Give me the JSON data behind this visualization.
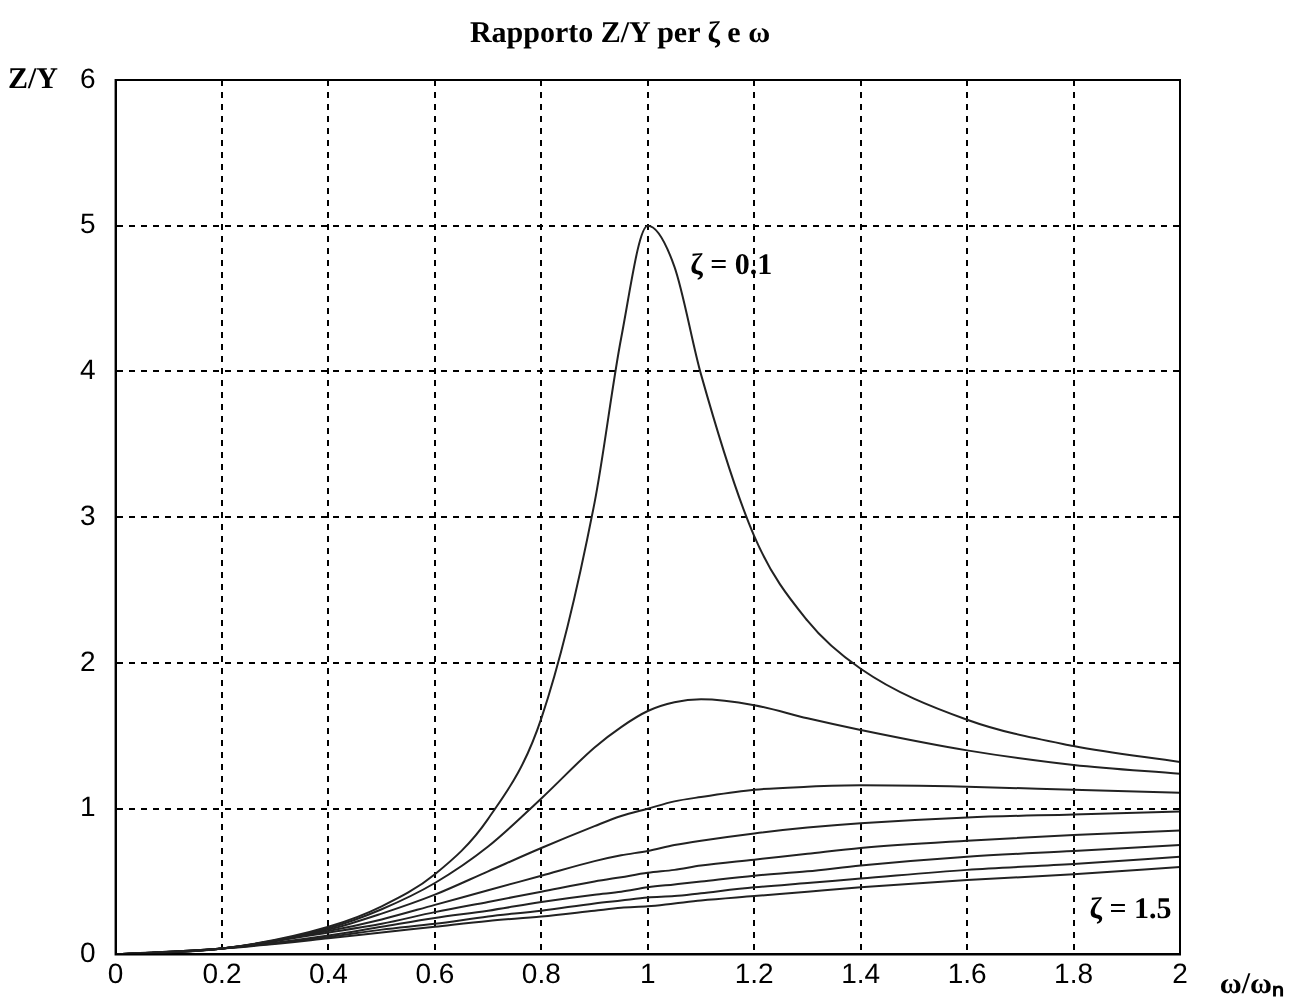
{
  "chart_data": {
    "type": "line",
    "title": "Rapporto Z/Y per ζ e ω",
    "xlabel": "ω/ωₙ",
    "ylabel": "Z/Y",
    "x": [
      0,
      0.2,
      0.4,
      0.5,
      0.6,
      0.7,
      0.8,
      0.9,
      0.95,
      1,
      1.05,
      1.1,
      1.2,
      1.3,
      1.4,
      1.6,
      1.8,
      2
    ],
    "series": [
      {
        "color": "#222222",
        "values": [
          0,
          0.04,
          0.19,
          0.33,
          0.55,
          0.93,
          1.62,
          3.1,
          4.23,
          5.0,
          4.72,
          3.98,
          2.87,
          2.29,
          1.96,
          1.61,
          1.43,
          1.32
        ]
      },
      {
        "color": "#222222",
        "values": [
          0,
          0.04,
          0.18,
          0.31,
          0.49,
          0.74,
          1.07,
          1.42,
          1.56,
          1.67,
          1.73,
          1.75,
          1.71,
          1.62,
          1.54,
          1.4,
          1.3,
          1.24
        ]
      },
      {
        "color": "#222222",
        "values": [
          0,
          0.04,
          0.17,
          0.28,
          0.41,
          0.57,
          0.73,
          0.88,
          0.95,
          1.0,
          1.05,
          1.08,
          1.13,
          1.15,
          1.16,
          1.15,
          1.13,
          1.11
        ]
      },
      {
        "color": "#222222",
        "values": [
          0,
          0.04,
          0.16,
          0.24,
          0.34,
          0.44,
          0.54,
          0.64,
          0.68,
          0.71,
          0.75,
          0.78,
          0.83,
          0.87,
          0.9,
          0.94,
          0.96,
          0.98
        ]
      },
      {
        "color": "#222222",
        "values": [
          0,
          0.04,
          0.15,
          0.21,
          0.29,
          0.36,
          0.43,
          0.5,
          0.53,
          0.56,
          0.58,
          0.61,
          0.65,
          0.69,
          0.73,
          0.78,
          0.82,
          0.85
        ]
      },
      {
        "color": "#222222",
        "values": [
          0,
          0.04,
          0.13,
          0.19,
          0.25,
          0.3,
          0.36,
          0.41,
          0.43,
          0.46,
          0.48,
          0.5,
          0.54,
          0.57,
          0.61,
          0.67,
          0.71,
          0.75
        ]
      },
      {
        "color": "#222222",
        "values": [
          0,
          0.04,
          0.12,
          0.17,
          0.21,
          0.26,
          0.3,
          0.35,
          0.37,
          0.39,
          0.4,
          0.42,
          0.46,
          0.49,
          0.52,
          0.58,
          0.62,
          0.67
        ]
      },
      {
        "color": "#222222",
        "values": [
          0,
          0.04,
          0.11,
          0.15,
          0.19,
          0.23,
          0.26,
          0.3,
          0.32,
          0.33,
          0.35,
          0.37,
          0.4,
          0.43,
          0.46,
          0.51,
          0.55,
          0.6
        ]
      }
    ],
    "xlim": [
      0,
      2
    ],
    "xticks": [
      0,
      0.2,
      0.4,
      0.6,
      0.8,
      1,
      1.2,
      1.4,
      1.6,
      1.8,
      2
    ],
    "ylim": [
      0,
      6
    ],
    "yticks": [
      0,
      1,
      2,
      3,
      4,
      5,
      6
    ],
    "grid": true,
    "legend": false,
    "marker": "none",
    "line_style": "solid",
    "annotations": [
      "ζ = 0.1",
      "ζ = 1.5"
    ]
  }
}
